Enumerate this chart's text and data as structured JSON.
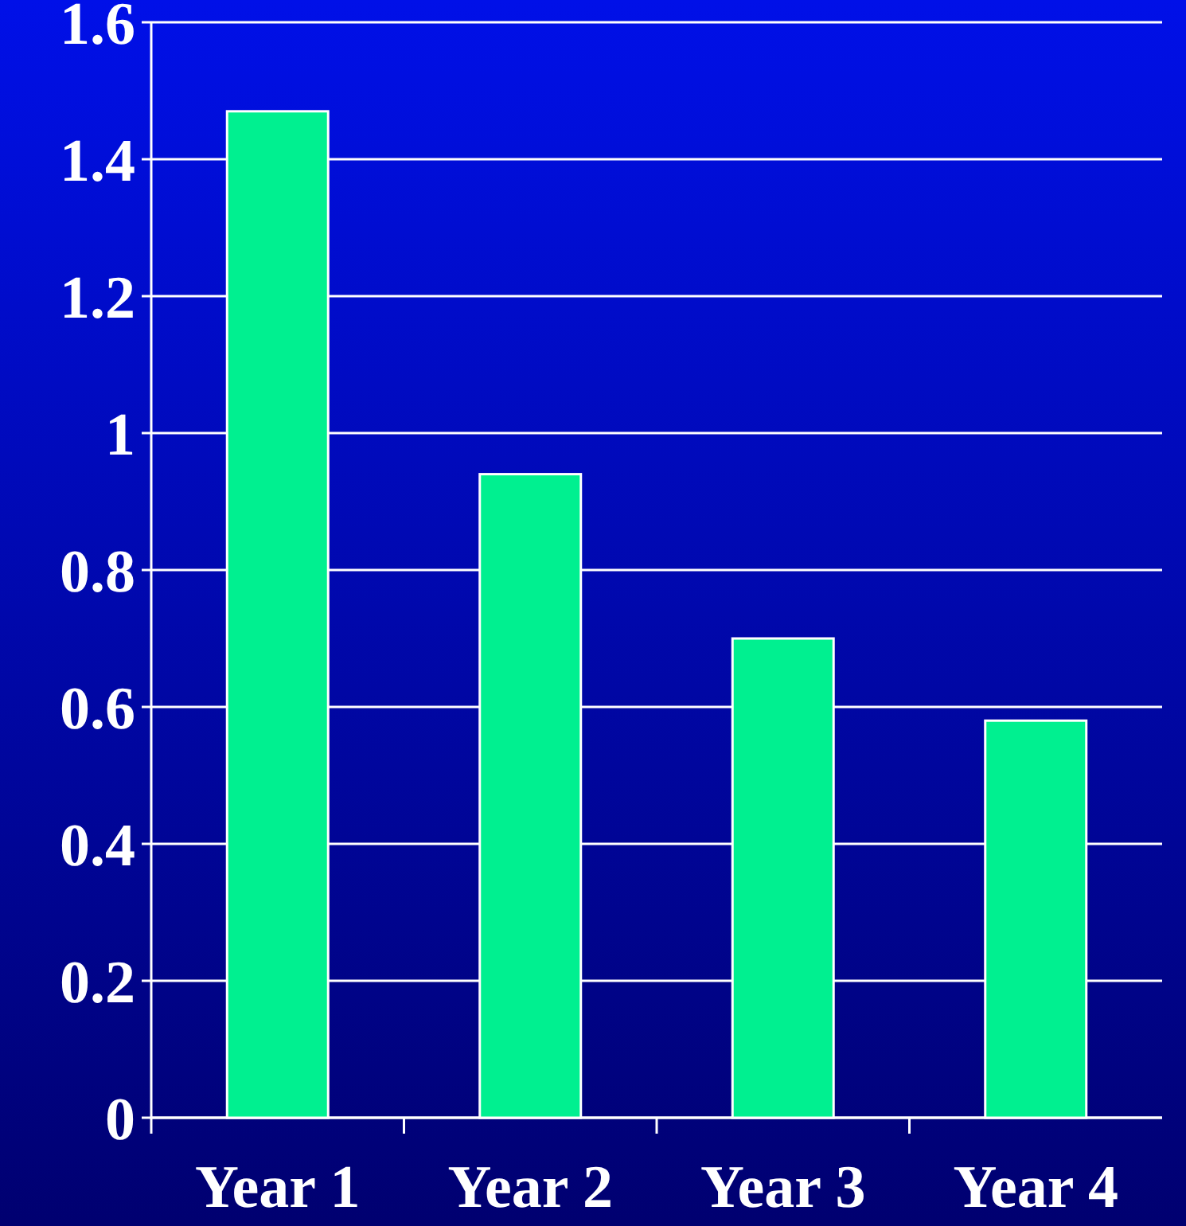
{
  "chart_data": {
    "type": "bar",
    "categories": [
      "Year 1",
      "Year 2",
      "Year 3",
      "Year 4"
    ],
    "values": [
      1.47,
      0.94,
      0.7,
      0.58
    ],
    "color": "#00f090",
    "ylim": [
      0,
      1.6
    ],
    "yticks": [
      0,
      0.2,
      0.4,
      0.6,
      0.8,
      1,
      1.2,
      1.4,
      1.6
    ],
    "grid": "y"
  }
}
